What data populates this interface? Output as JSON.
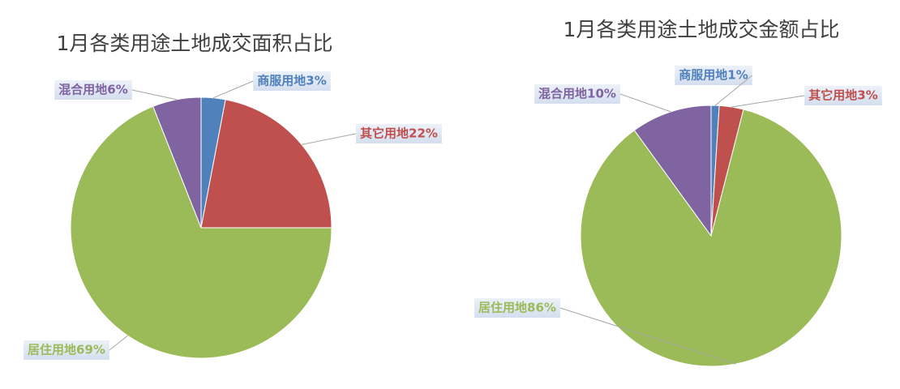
{
  "chart_data": [
    {
      "type": "pie",
      "title": "1月各类用途土地成交面积占比",
      "values": [
        3,
        22,
        69,
        6
      ],
      "value_labels": [
        "商服用地3%",
        "其它用地22%",
        "居住用地69%",
        "混合用地6%"
      ],
      "colors": [
        "#4f81bd",
        "#c0504d",
        "#9bbb59",
        "#8064a2"
      ]
    },
    {
      "type": "pie",
      "title": "1月各类用途土地成交金额占比",
      "values": [
        1,
        3,
        86,
        10
      ],
      "value_labels": [
        "商服用地1%",
        "其它用地3%",
        "居住用地86%",
        "混合用地10%"
      ],
      "colors": [
        "#4f81bd",
        "#c0504d",
        "#9bbb59",
        "#8064a2"
      ]
    }
  ]
}
